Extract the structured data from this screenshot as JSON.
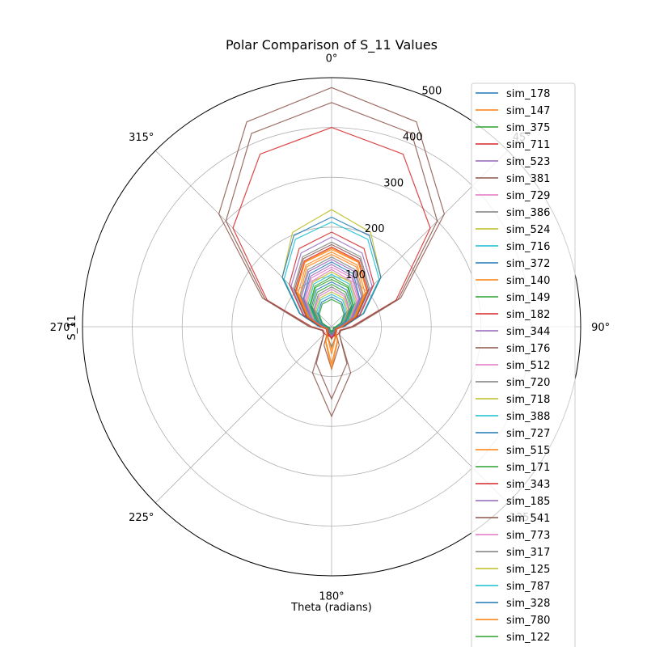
{
  "chart_data": {
    "type": "polar-line",
    "title": "Polar Comparison of S_11 Values",
    "xlabel": "Theta (radians)",
    "ylabel": "S_11",
    "theta_zero": "top",
    "theta_direction": "clockwise",
    "rlim": [
      0,
      500
    ],
    "r_ticks": [
      100,
      200,
      300,
      400,
      500
    ],
    "theta_ticks": [
      "0°",
      "45°",
      "90°",
      "135°",
      "180°",
      "225°",
      "270°",
      "315°"
    ],
    "grid": true,
    "legend_position": "right",
    "series": [
      {
        "name": "sim_178",
        "color": "#1f77b4",
        "values": [
          130,
          115,
          80,
          45,
          18,
          8,
          10,
          22,
          40,
          22,
          10,
          8,
          18,
          45,
          80,
          115
        ]
      },
      {
        "name": "sim_147",
        "color": "#ff7f0e",
        "values": [
          145,
          130,
          90,
          50,
          20,
          10,
          12,
          30,
          75,
          30,
          12,
          10,
          20,
          50,
          90,
          130
        ]
      },
      {
        "name": "sim_375",
        "color": "#2ca02c",
        "values": [
          95,
          85,
          60,
          35,
          15,
          7,
          8,
          15,
          25,
          15,
          8,
          7,
          15,
          35,
          60,
          85
        ]
      },
      {
        "name": "sim_711",
        "color": "#d62728",
        "values": [
          400,
          375,
          280,
          140,
          40,
          18,
          20,
          20,
          20,
          20,
          20,
          18,
          40,
          140,
          280,
          375
        ]
      },
      {
        "name": "sim_523",
        "color": "#9467bd",
        "values": [
          180,
          160,
          115,
          60,
          22,
          10,
          10,
          15,
          20,
          15,
          10,
          10,
          22,
          60,
          115,
          160
        ]
      },
      {
        "name": "sim_381",
        "color": "#8c564b",
        "values": [
          480,
          445,
          320,
          150,
          45,
          20,
          22,
          100,
          180,
          100,
          22,
          20,
          45,
          150,
          320,
          445
        ]
      },
      {
        "name": "sim_729",
        "color": "#e377c2",
        "values": [
          115,
          100,
          72,
          40,
          16,
          8,
          9,
          14,
          22,
          14,
          9,
          8,
          16,
          40,
          72,
          100
        ]
      },
      {
        "name": "sim_386",
        "color": "#7f7f7f",
        "values": [
          170,
          152,
          108,
          56,
          20,
          9,
          10,
          14,
          20,
          14,
          10,
          9,
          20,
          56,
          108,
          152
        ]
      },
      {
        "name": "sim_524",
        "color": "#bcbd22",
        "values": [
          235,
          205,
          140,
          70,
          25,
          10,
          10,
          12,
          15,
          12,
          10,
          10,
          25,
          70,
          140,
          205
        ]
      },
      {
        "name": "sim_716",
        "color": "#17becf",
        "values": [
          210,
          190,
          135,
          68,
          24,
          10,
          10,
          12,
          15,
          12,
          10,
          10,
          24,
          68,
          135,
          190
        ]
      },
      {
        "name": "sim_372",
        "color": "#1f77b4",
        "values": [
          220,
          198,
          140,
          70,
          25,
          10,
          10,
          12,
          15,
          12,
          10,
          10,
          25,
          70,
          140,
          198
        ]
      },
      {
        "name": "sim_140",
        "color": "#ff7f0e",
        "values": [
          155,
          140,
          100,
          52,
          20,
          9,
          10,
          20,
          45,
          20,
          10,
          9,
          20,
          52,
          100,
          140
        ]
      },
      {
        "name": "sim_149",
        "color": "#2ca02c",
        "values": [
          100,
          88,
          62,
          35,
          15,
          7,
          8,
          12,
          18,
          12,
          8,
          7,
          15,
          35,
          62,
          88
        ]
      },
      {
        "name": "sim_182",
        "color": "#d62728",
        "values": [
          190,
          170,
          120,
          62,
          22,
          12,
          14,
          18,
          22,
          18,
          14,
          12,
          22,
          62,
          120,
          170
        ]
      },
      {
        "name": "sim_344",
        "color": "#9467bd",
        "values": [
          125,
          110,
          78,
          42,
          16,
          8,
          9,
          14,
          20,
          14,
          9,
          8,
          16,
          42,
          78,
          110
        ]
      },
      {
        "name": "sim_176",
        "color": "#8c564b",
        "values": [
          450,
          420,
          300,
          145,
          42,
          20,
          22,
          80,
          145,
          80,
          22,
          20,
          42,
          145,
          300,
          420
        ]
      },
      {
        "name": "sim_512",
        "color": "#e377c2",
        "values": [
          120,
          106,
          75,
          40,
          16,
          8,
          9,
          13,
          18,
          13,
          9,
          8,
          16,
          40,
          75,
          106
        ]
      },
      {
        "name": "sim_720",
        "color": "#7f7f7f",
        "values": [
          140,
          124,
          88,
          48,
          18,
          8,
          9,
          12,
          16,
          12,
          9,
          8,
          18,
          48,
          88,
          124
        ]
      },
      {
        "name": "sim_718",
        "color": "#bcbd22",
        "values": [
          110,
          97,
          69,
          38,
          15,
          7,
          8,
          12,
          16,
          12,
          8,
          7,
          15,
          38,
          69,
          97
        ]
      },
      {
        "name": "sim_388",
        "color": "#17becf",
        "values": [
          105,
          93,
          66,
          36,
          15,
          7,
          8,
          12,
          15,
          12,
          8,
          7,
          15,
          36,
          66,
          93
        ]
      },
      {
        "name": "sim_727",
        "color": "#1f77b4",
        "values": [
          90,
          80,
          57,
          32,
          13,
          6,
          7,
          10,
          14,
          10,
          7,
          6,
          13,
          32,
          57,
          80
        ]
      },
      {
        "name": "sim_515",
        "color": "#ff7f0e",
        "values": [
          150,
          134,
          95,
          50,
          19,
          9,
          10,
          22,
          55,
          22,
          10,
          9,
          19,
          50,
          95,
          134
        ]
      },
      {
        "name": "sim_171",
        "color": "#2ca02c",
        "values": [
          85,
          75,
          54,
          30,
          12,
          6,
          7,
          10,
          14,
          10,
          7,
          6,
          12,
          30,
          54,
          75
        ]
      },
      {
        "name": "sim_343",
        "color": "#d62728",
        "values": [
          160,
          143,
          102,
          54,
          20,
          9,
          10,
          16,
          24,
          16,
          10,
          9,
          20,
          54,
          102,
          143
        ]
      },
      {
        "name": "sim_185",
        "color": "#9467bd",
        "values": [
          135,
          120,
          85,
          45,
          17,
          8,
          9,
          13,
          18,
          13,
          9,
          8,
          17,
          45,
          85,
          120
        ]
      },
      {
        "name": "sim_541",
        "color": "#8c564b",
        "values": [
          165,
          148,
          105,
          55,
          20,
          9,
          10,
          40,
          85,
          40,
          10,
          9,
          20,
          55,
          105,
          148
        ]
      },
      {
        "name": "sim_773",
        "color": "#e377c2",
        "values": [
          75,
          66,
          48,
          27,
          11,
          6,
          6,
          9,
          12,
          9,
          6,
          6,
          11,
          27,
          48,
          66
        ]
      },
      {
        "name": "sim_317",
        "color": "#7f7f7f",
        "values": [
          80,
          70,
          50,
          28,
          12,
          6,
          6,
          9,
          12,
          9,
          6,
          6,
          12,
          28,
          50,
          70
        ]
      },
      {
        "name": "sim_125",
        "color": "#bcbd22",
        "values": [
          70,
          62,
          45,
          25,
          10,
          5,
          6,
          8,
          11,
          8,
          6,
          5,
          10,
          25,
          45,
          62
        ]
      },
      {
        "name": "sim_787",
        "color": "#17becf",
        "values": [
          65,
          58,
          42,
          24,
          10,
          5,
          6,
          8,
          10,
          8,
          6,
          5,
          10,
          24,
          42,
          58
        ]
      },
      {
        "name": "sim_328",
        "color": "#1f77b4",
        "values": [
          60,
          53,
          38,
          22,
          9,
          5,
          5,
          8,
          10,
          8,
          5,
          5,
          9,
          22,
          38,
          53
        ]
      },
      {
        "name": "sim_780",
        "color": "#ff7f0e",
        "values": [
          158,
          141,
          100,
          52,
          20,
          10,
          12,
          32,
          85,
          32,
          12,
          10,
          20,
          52,
          100,
          141
        ]
      },
      {
        "name": "sim_122",
        "color": "#2ca02c",
        "values": [
          55,
          49,
          35,
          20,
          8,
          4,
          5,
          7,
          9,
          7,
          5,
          4,
          8,
          20,
          35,
          49
        ]
      }
    ]
  }
}
